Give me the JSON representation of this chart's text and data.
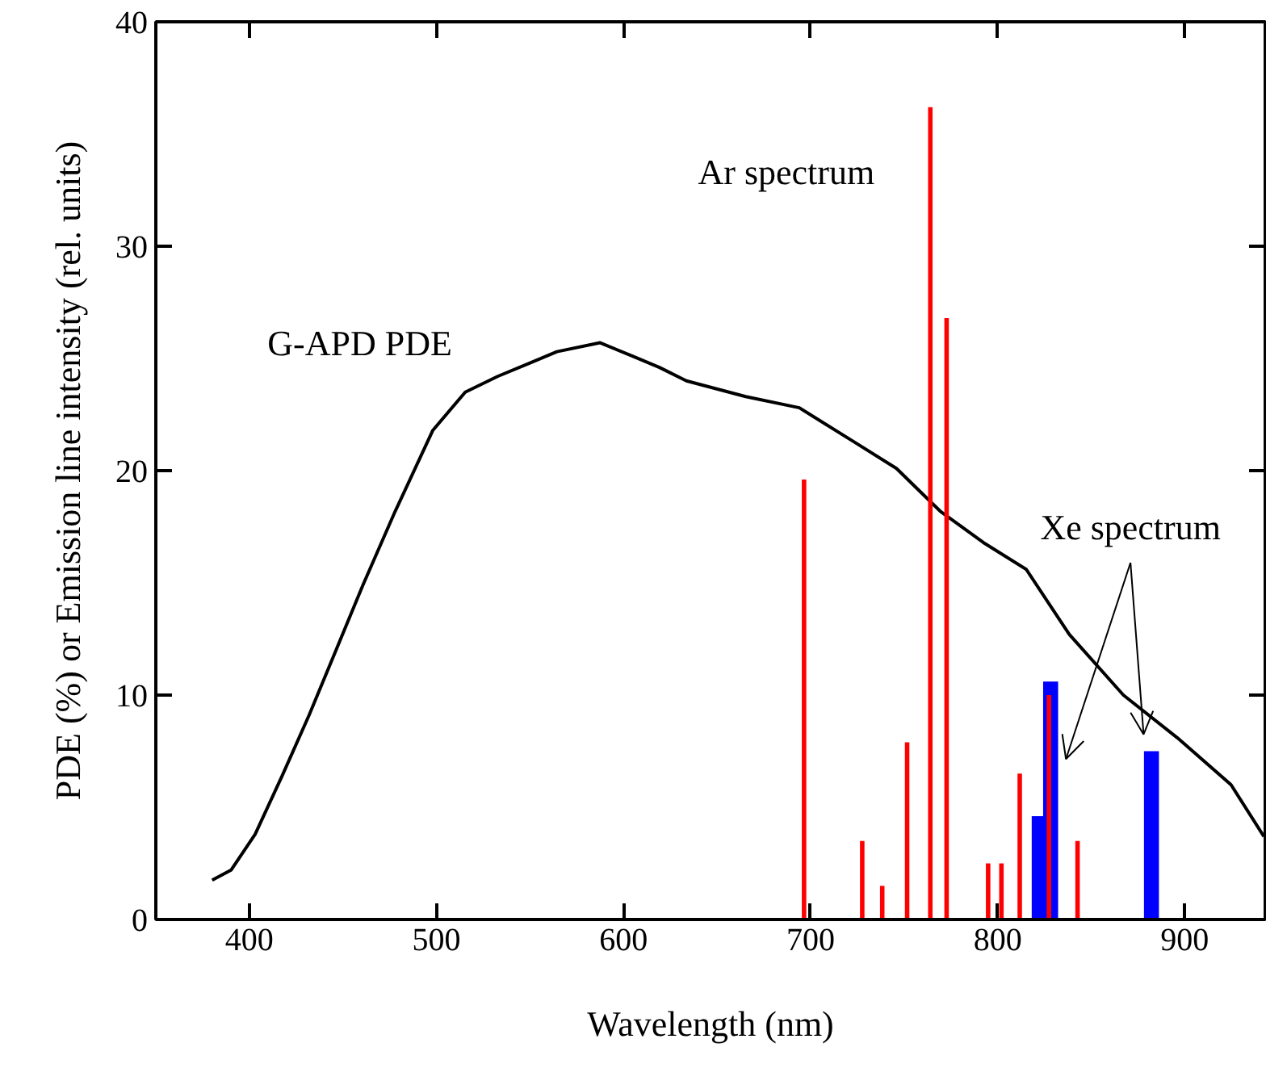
{
  "chart_data": {
    "type": "line",
    "xlabel": "Wavelength (nm)",
    "ylabel": "PDE (%) or Emission line intensity (rel. units)",
    "xlim": [
      350,
      943
    ],
    "ylim": [
      0,
      40
    ],
    "xticks": [
      400,
      500,
      600,
      700,
      800,
      900
    ],
    "yticks": [
      0,
      10,
      20,
      30,
      40
    ],
    "grid": false,
    "series": [
      {
        "color": "#000000",
        "x": [
          380.1,
          390.2,
          403.1,
          417.5,
          431.9,
          446.3,
          460.7,
          478,
          498.1,
          515.4,
          532.7,
          550,
          564.4,
          587.5,
          604.8,
          619.2,
          633.6,
          665.3,
          694,
          722.9,
          745.9,
          769.2,
          792.3,
          815.3,
          838.3,
          867.2,
          896,
          924.8,
          942.3
        ],
        "values": [
          1.75,
          2.2,
          3.8,
          6.4,
          9.1,
          12.0,
          14.9,
          18.2,
          21.8,
          23.5,
          24.2,
          24.8,
          25.3,
          25.7,
          25.1,
          24.6,
          24.0,
          23.3,
          22.8,
          21.3,
          20.1,
          18.2,
          16.8,
          15.6,
          12.7,
          10.0,
          8.1,
          6.0,
          3.7
        ]
      },
      {
        "type": "bar",
        "color": "#0000ff",
        "x": [
          822.2,
          828.3,
          882.2
        ],
        "values": [
          4.6,
          10.6,
          7.5
        ]
      },
      {
        "type": "bar",
        "color": "#ff0000",
        "x": [
          696.5,
          727.6,
          738.3,
          751.6,
          764,
          772.7,
          794.9,
          802,
          811.8,
          827.4,
          842.7
        ],
        "values": [
          19.6,
          3.5,
          1.5,
          7.9,
          36.2,
          26.8,
          2.5,
          2.5,
          6.5,
          10.0,
          3.5
        ]
      }
    ],
    "annotations": [
      "Ar spectrum",
      "G-APD PDE",
      "Xe spectrum"
    ]
  }
}
